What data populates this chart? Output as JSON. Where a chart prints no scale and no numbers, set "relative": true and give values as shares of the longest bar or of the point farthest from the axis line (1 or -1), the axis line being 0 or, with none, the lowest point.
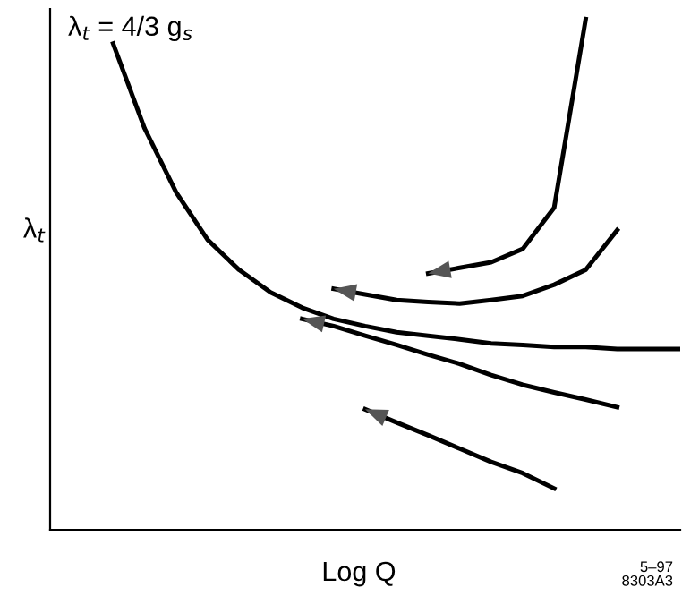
{
  "chart_data": {
    "type": "line",
    "relative": true,
    "xlabel": "Log Q",
    "ylabel": "λ$_{t}$",
    "marker": "none",
    "line_style": "solid",
    "annotations": [
      "λ$_{t}$ = 4/3 g$_{s}$",
      "5–97\n8303A3"
    ],
    "categories": [
      null,
      null,
      null,
      null,
      null,
      null,
      null,
      null,
      null,
      null,
      null,
      null,
      null,
      null,
      null,
      null,
      null,
      null,
      null,
      null,
      null
    ],
    "series": [
      {
        "color": "#000000",
        "values": [
          null,
          null,
          0.952,
          0.786,
          0.661,
          0.568,
          0.509,
          0.465,
          0.435,
          0.413,
          0.399,
          0.387,
          0.38,
          0.373,
          0.365,
          0.362,
          0.358,
          0.358,
          0.354,
          0.354,
          0.354
        ]
      },
      {
        "color": "#000000",
        "values": [
          null,
          null,
          null,
          null,
          null,
          null,
          null,
          null,
          null,
          null,
          null,
          null,
          0.502,
          0.513,
          0.524,
          0.55,
          0.631,
          1.0,
          null,
          null,
          null
        ]
      },
      {
        "color": "#000000",
        "values": [
          null,
          null,
          null,
          null,
          null,
          null,
          null,
          null,
          null,
          0.472,
          0.461,
          0.45,
          0.446,
          0.443,
          0.45,
          0.458,
          0.48,
          0.509,
          0.587,
          null,
          null
        ]
      },
      {
        "color": "#000000",
        "values": [
          null,
          null,
          null,
          null,
          null,
          null,
          null,
          null,
          0.413,
          0.399,
          0.38,
          0.362,
          0.343,
          0.325,
          0.303,
          0.284,
          0.269,
          0.255,
          0.24,
          null,
          null
        ]
      },
      {
        "color": "#000000",
        "values": [
          null,
          null,
          null,
          null,
          null,
          null,
          null,
          null,
          null,
          null,
          0.236,
          0.21,
          0.185,
          0.159,
          0.133,
          0.111,
          0.081,
          null,
          null,
          null,
          null
        ]
      }
    ]
  }
}
